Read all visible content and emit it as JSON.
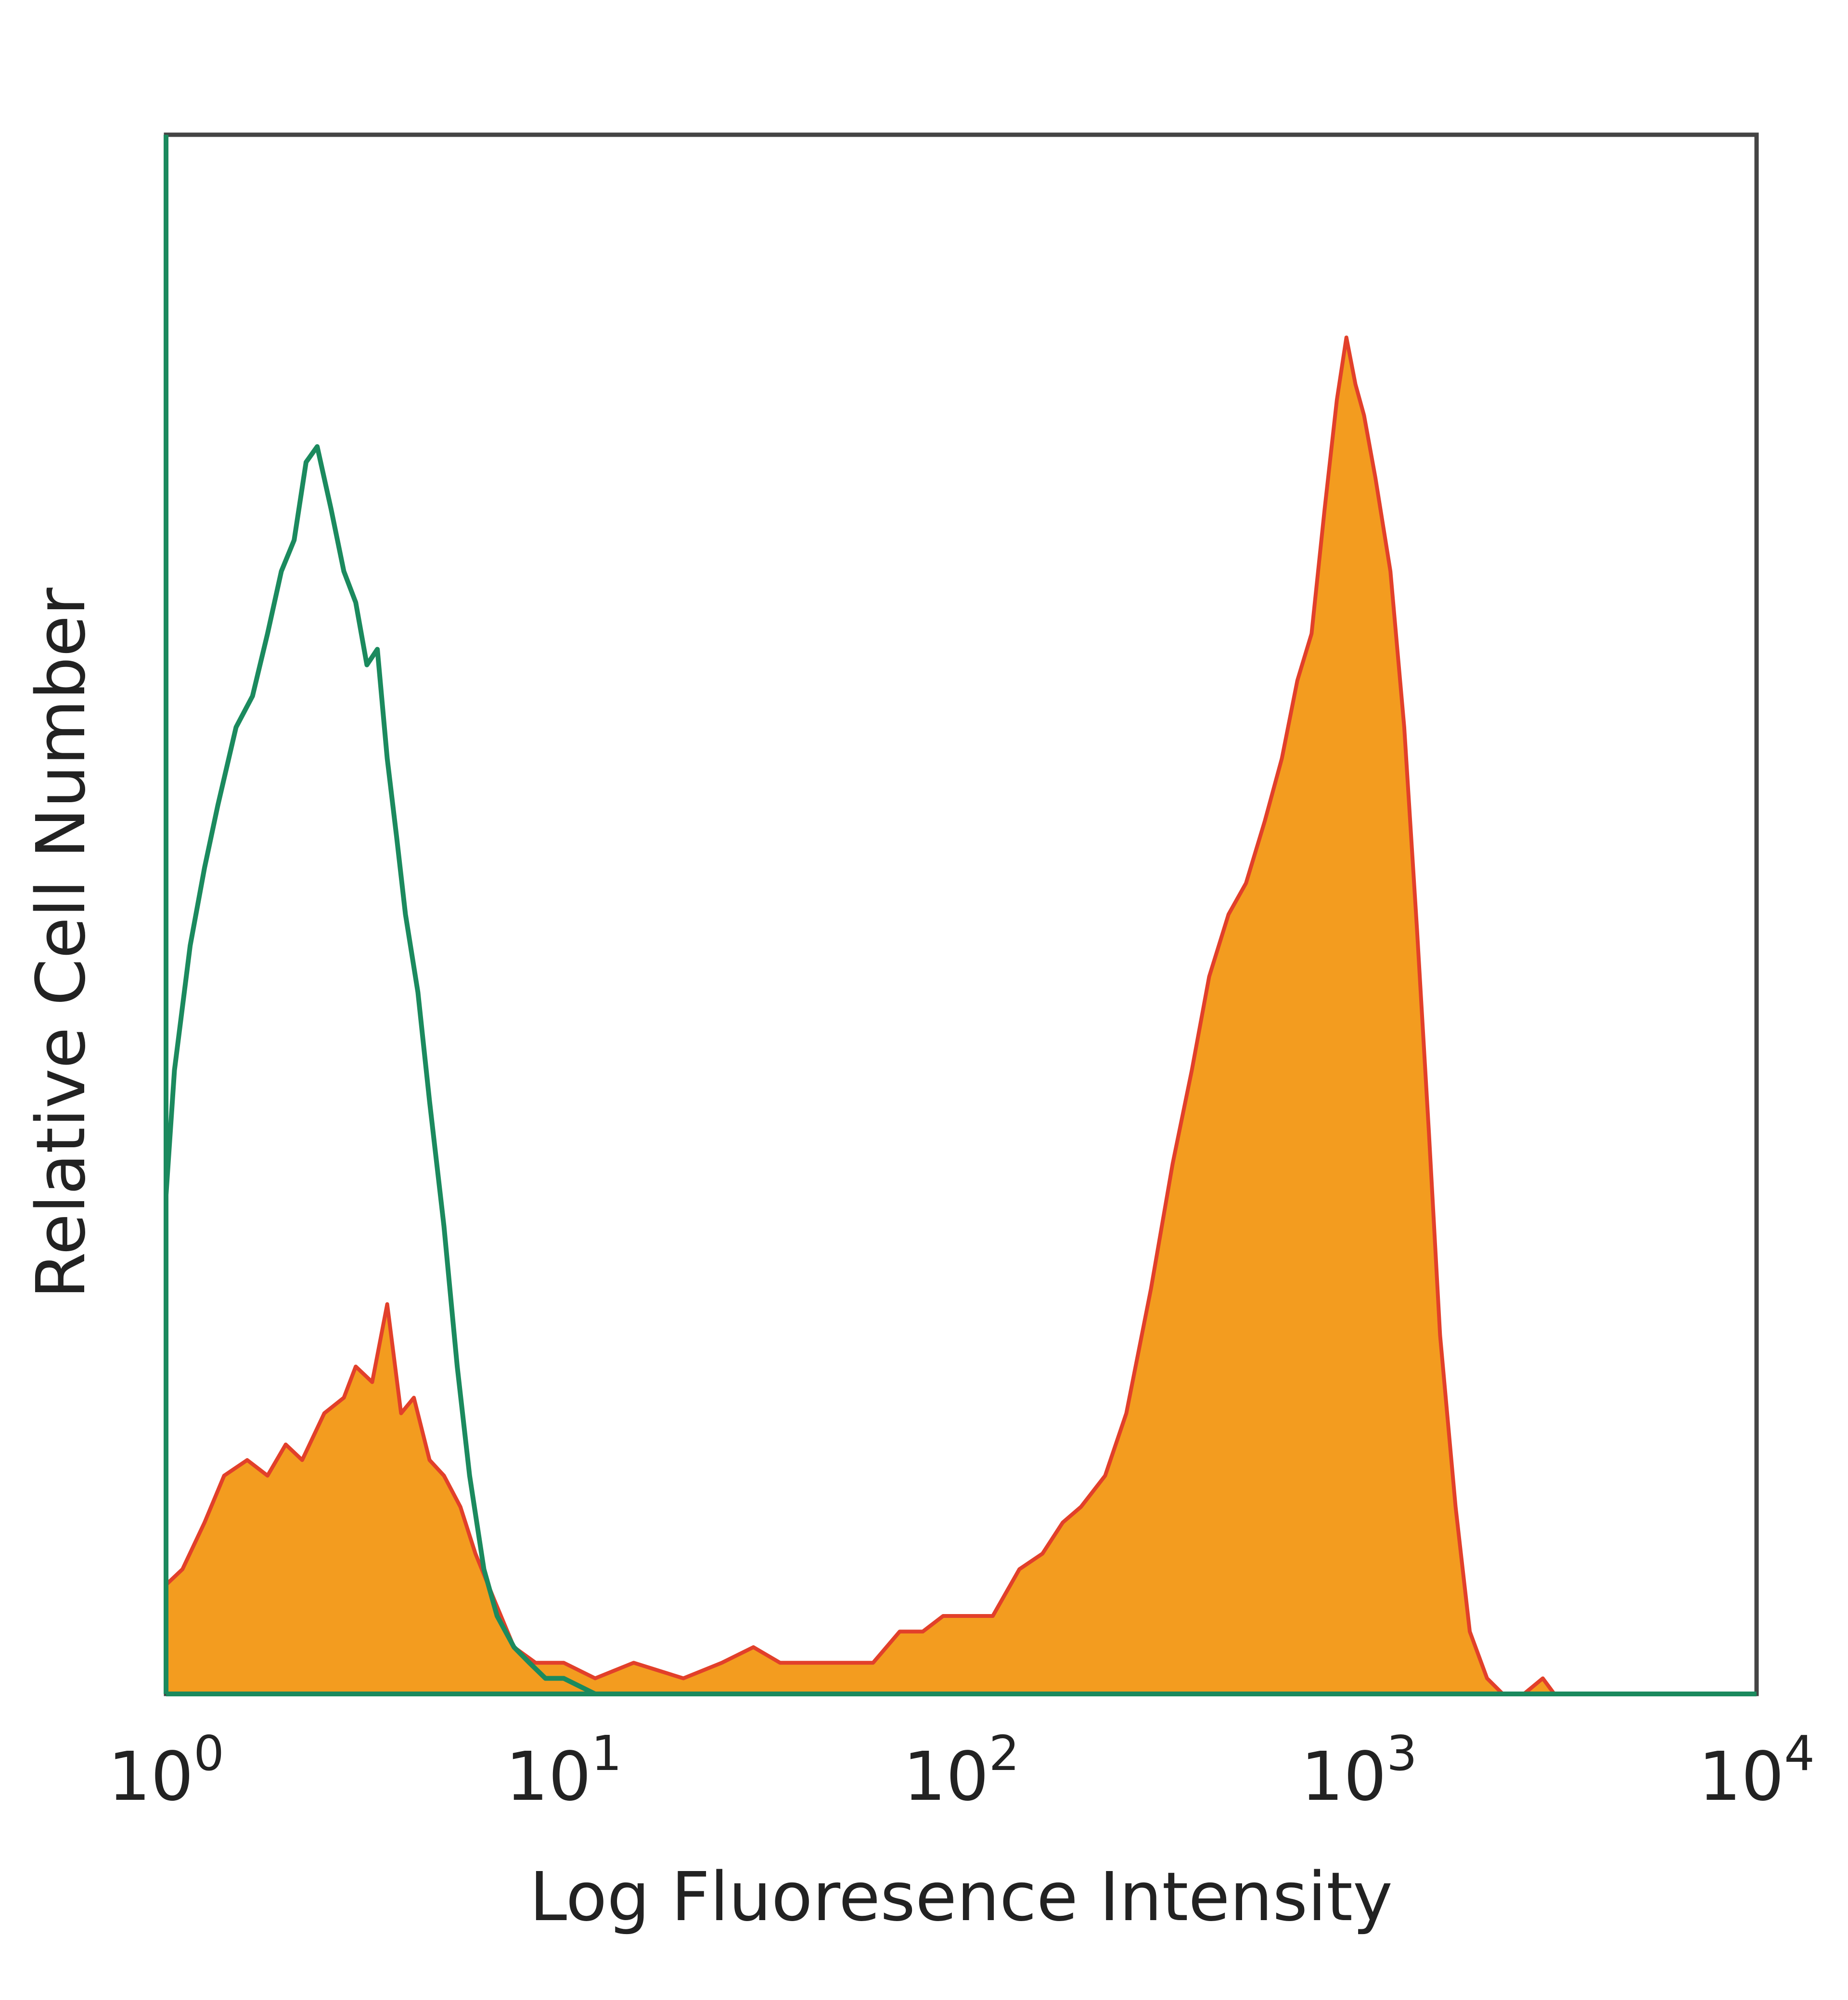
{
  "chart_data": {
    "type": "area",
    "title": "",
    "xlabel": "Log Fluoresence Intensity",
    "ylabel": "Relative Cell Number",
    "x_scale": "log",
    "xlim": [
      1,
      10000
    ],
    "ylim": [
      0,
      100
    ],
    "grid": false,
    "legend": "none",
    "x_ticks": [
      {
        "base": "10",
        "exp": "0",
        "value": 1
      },
      {
        "base": "10",
        "exp": "1",
        "value": 10
      },
      {
        "base": "10",
        "exp": "2",
        "value": 100
      },
      {
        "base": "10",
        "exp": "3",
        "value": 1000
      },
      {
        "base": "10",
        "exp": "4",
        "value": 10000
      }
    ],
    "series": [
      {
        "style": "filled",
        "fill_color": "#f39c1f",
        "line_color": "#e2402a",
        "points": [
          [
            1.0,
            7
          ],
          [
            1.1,
            8
          ],
          [
            1.25,
            11
          ],
          [
            1.4,
            14
          ],
          [
            1.6,
            15
          ],
          [
            1.8,
            14
          ],
          [
            2.0,
            16
          ],
          [
            2.2,
            15
          ],
          [
            2.5,
            18
          ],
          [
            2.8,
            19
          ],
          [
            3.0,
            21
          ],
          [
            3.3,
            20
          ],
          [
            3.6,
            25
          ],
          [
            3.9,
            18
          ],
          [
            4.2,
            19
          ],
          [
            4.6,
            15
          ],
          [
            5.0,
            14
          ],
          [
            5.5,
            12
          ],
          [
            6.0,
            9
          ],
          [
            6.7,
            6
          ],
          [
            7.5,
            3
          ],
          [
            8.5,
            2
          ],
          [
            10,
            2
          ],
          [
            12,
            1
          ],
          [
            15,
            2
          ],
          [
            20,
            1
          ],
          [
            25,
            2
          ],
          [
            30,
            3
          ],
          [
            35,
            2
          ],
          [
            40,
            2
          ],
          [
            50,
            2
          ],
          [
            60,
            2
          ],
          [
            70,
            4
          ],
          [
            80,
            4
          ],
          [
            90,
            5
          ],
          [
            100,
            5
          ],
          [
            120,
            5
          ],
          [
            140,
            8
          ],
          [
            160,
            9
          ],
          [
            180,
            11
          ],
          [
            200,
            12
          ],
          [
            230,
            14
          ],
          [
            260,
            18
          ],
          [
            300,
            26
          ],
          [
            340,
            34
          ],
          [
            380,
            40
          ],
          [
            420,
            46
          ],
          [
            470,
            50
          ],
          [
            520,
            52
          ],
          [
            580,
            56
          ],
          [
            640,
            60
          ],
          [
            700,
            65
          ],
          [
            760,
            68
          ],
          [
            820,
            76
          ],
          [
            880,
            83
          ],
          [
            930,
            87
          ],
          [
            980,
            84
          ],
          [
            1030,
            82
          ],
          [
            1100,
            78
          ],
          [
            1200,
            72
          ],
          [
            1300,
            62
          ],
          [
            1400,
            49
          ],
          [
            1500,
            36
          ],
          [
            1600,
            23
          ],
          [
            1750,
            12
          ],
          [
            1900,
            4
          ],
          [
            2100,
            1
          ],
          [
            2300,
            0
          ],
          [
            2600,
            0
          ],
          [
            2900,
            1
          ],
          [
            3100,
            0
          ]
        ]
      },
      {
        "style": "line",
        "line_color": "#1b8a5e",
        "points": [
          [
            1.0,
            32
          ],
          [
            1.05,
            40
          ],
          [
            1.15,
            48
          ],
          [
            1.25,
            53
          ],
          [
            1.35,
            57
          ],
          [
            1.5,
            62
          ],
          [
            1.65,
            64
          ],
          [
            1.8,
            68
          ],
          [
            1.95,
            72
          ],
          [
            2.1,
            74
          ],
          [
            2.25,
            79
          ],
          [
            2.4,
            80
          ],
          [
            2.6,
            76
          ],
          [
            2.8,
            72
          ],
          [
            3.0,
            70
          ],
          [
            3.2,
            66
          ],
          [
            3.4,
            67
          ],
          [
            3.6,
            60
          ],
          [
            3.8,
            55
          ],
          [
            4.0,
            50
          ],
          [
            4.3,
            45
          ],
          [
            4.6,
            38
          ],
          [
            5.0,
            30
          ],
          [
            5.4,
            21
          ],
          [
            5.8,
            14
          ],
          [
            6.3,
            8
          ],
          [
            6.8,
            5
          ],
          [
            7.5,
            3
          ],
          [
            8.2,
            2
          ],
          [
            9.0,
            1
          ],
          [
            10,
            1
          ],
          [
            12,
            0
          ],
          [
            20,
            0
          ]
        ]
      }
    ]
  }
}
